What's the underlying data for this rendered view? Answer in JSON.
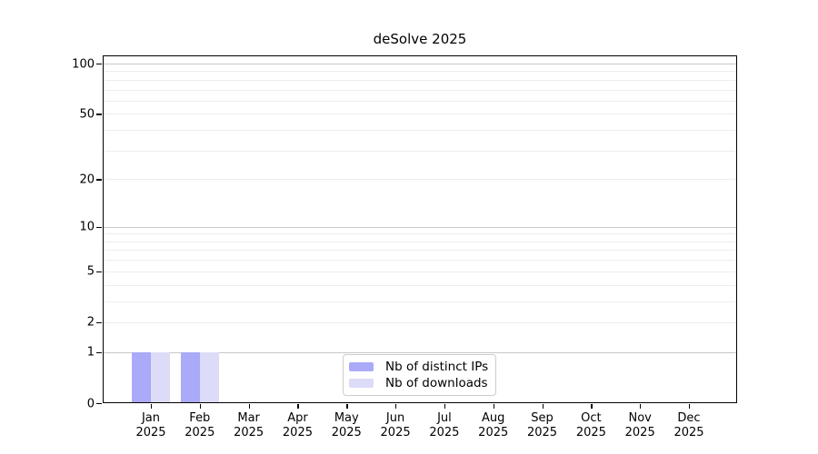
{
  "chart_data": {
    "type": "bar",
    "title": "deSolve 2025",
    "categories": [
      "Jan",
      "Feb",
      "Mar",
      "Apr",
      "May",
      "Jun",
      "Jul",
      "Aug",
      "Sep",
      "Oct",
      "Nov",
      "Dec"
    ],
    "x_year_label": "2025",
    "series": [
      {
        "name": "Nb of distinct IPs",
        "color": "#aaaaf8",
        "values": [
          1,
          1,
          0,
          0,
          0,
          0,
          0,
          0,
          0,
          0,
          0,
          0
        ]
      },
      {
        "name": "Nb of downloads",
        "color": "#dcdcf8",
        "values": [
          1,
          1,
          0,
          0,
          0,
          0,
          0,
          0,
          0,
          0,
          0,
          0
        ]
      }
    ],
    "y_scale": "log1p",
    "ylim": [
      0,
      100
    ],
    "y_ticks": [
      0,
      1,
      2,
      5,
      10,
      20,
      50,
      100
    ],
    "y_major_gridlines": [
      1,
      10,
      100
    ],
    "y_minor_gridlines": [
      2,
      3,
      4,
      5,
      6,
      7,
      8,
      9,
      20,
      30,
      40,
      50,
      60,
      70,
      80,
      90
    ],
    "grid_on": true,
    "grid_color_major": "#c8c8c8",
    "grid_color_minor": "#ededed",
    "axis_color": "#000000",
    "legend_position": "inside-bottom-center",
    "xlabel": "",
    "ylabel": ""
  }
}
